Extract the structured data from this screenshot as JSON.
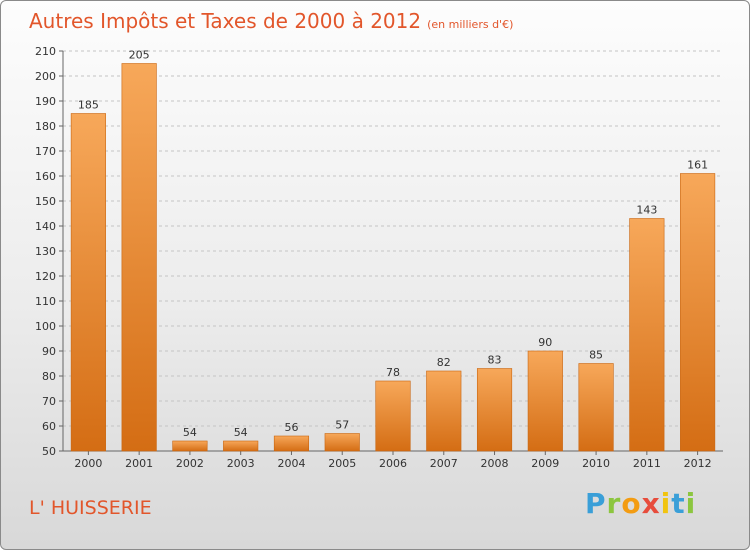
{
  "title": "Autres Impôts et Taxes de 2000 à 2012",
  "subtitle": "(en milliers d'€)",
  "location": "L' HUISSERIE",
  "logo": {
    "letters": [
      "P",
      "r",
      "o",
      "x",
      "i",
      "t",
      "i"
    ],
    "colors": [
      "#3a9fd8",
      "#8cc63f",
      "#f39c12",
      "#e74c3c",
      "#f1c40f",
      "#3a9fd8",
      "#8cc63f"
    ]
  },
  "colors": {
    "bar": "#f08c2e",
    "bar_light": "#f7a85a",
    "bar_dark": "#d46d14",
    "text_accent": "#e2562b"
  },
  "chart_data": {
    "type": "bar",
    "categories": [
      "2000",
      "2001",
      "2002",
      "2003",
      "2004",
      "2005",
      "2006",
      "2007",
      "2008",
      "2009",
      "2010",
      "2011",
      "2012"
    ],
    "values": [
      185,
      205,
      54,
      54,
      56,
      57,
      78,
      82,
      83,
      90,
      85,
      143,
      161
    ],
    "ylim": [
      50,
      210
    ],
    "yticks": [
      50,
      60,
      70,
      80,
      90,
      100,
      110,
      120,
      130,
      140,
      150,
      160,
      170,
      180,
      190,
      200,
      210
    ],
    "grid": true
  }
}
